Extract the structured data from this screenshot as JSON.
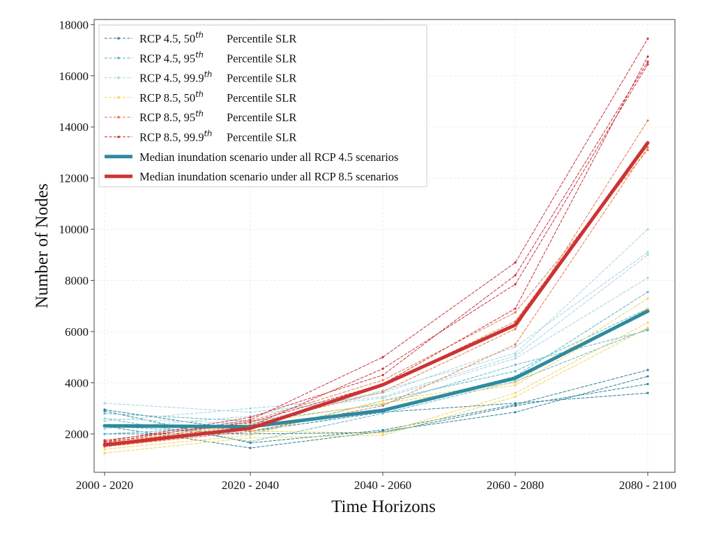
{
  "chart_data": {
    "type": "line",
    "title": "",
    "xlabel": "Time Horizons",
    "ylabel": "Number of Nodes",
    "categories": [
      "2000 - 2020",
      "2020 - 2040",
      "2040 - 2060",
      "2060 - 2080",
      "2080 - 2100"
    ],
    "ylim": [
      500,
      18200
    ],
    "yticks": [
      "2000",
      "4000",
      "6000",
      "8000",
      "10000",
      "12000",
      "14000",
      "16000",
      "18000"
    ],
    "grid": true,
    "legend_position": "top-left",
    "colors": {
      "rcp45_50": "#2a7f96",
      "rcp45_95": "#5ab6c9",
      "rcp45_999": "#a5d4dd",
      "rcp85_50": "#f2d45c",
      "rcp85_95": "#e8764a",
      "rcp85_999": "#c8303a",
      "median45": "#2e8a9e",
      "median85": "#cc3333"
    },
    "legend": [
      {
        "key": "rcp45_50",
        "prefix": "RCP 4.5,  50",
        "sup": "th",
        "suffix": "Percentile SLR",
        "style": "dashed"
      },
      {
        "key": "rcp45_95",
        "prefix": "RCP 4.5,  95",
        "sup": "th",
        "suffix": "Percentile SLR",
        "style": "dashed"
      },
      {
        "key": "rcp45_999",
        "prefix": "RCP 4.5,  99.9",
        "sup": "th",
        "suffix": "Percentile SLR",
        "style": "dashed"
      },
      {
        "key": "rcp85_50",
        "prefix": "RCP 8.5,  50",
        "sup": "th",
        "suffix": "Percentile SLR",
        "style": "dashed"
      },
      {
        "key": "rcp85_95",
        "prefix": "RCP 8.5,  95",
        "sup": "th",
        "suffix": "Percentile SLR",
        "style": "dashed"
      },
      {
        "key": "rcp85_999",
        "prefix": "RCP 8.5,  99.9",
        "sup": "th",
        "suffix": "Percentile SLR",
        "style": "dashed"
      },
      {
        "key": "median45",
        "text": "Median inundation scenario under all RCP 4.5 scenarios",
        "style": "solid"
      },
      {
        "key": "median85",
        "text": "Median inundation scenario under all RCP 8.5 scenarios",
        "style": "solid"
      }
    ],
    "series": [
      {
        "group": "rcp45_50",
        "values": [
          2900,
          1650,
          2150,
          3150,
          4500
        ]
      },
      {
        "group": "rcp45_50",
        "values": [
          2300,
          1450,
          2100,
          2850,
          4250
        ]
      },
      {
        "group": "rcp45_50",
        "values": [
          2000,
          2000,
          2050,
          3100,
          3950
        ]
      },
      {
        "group": "rcp45_50",
        "values": [
          2950,
          2100,
          2850,
          3200,
          3600
        ]
      },
      {
        "group": "rcp45_95",
        "values": [
          2600,
          1700,
          2800,
          4050,
          6100
        ]
      },
      {
        "group": "rcp45_95",
        "values": [
          2300,
          2000,
          3300,
          4450,
          6900
        ]
      },
      {
        "group": "rcp45_95",
        "values": [
          2000,
          2300,
          2950,
          4250,
          7550
        ]
      },
      {
        "group": "rcp45_95",
        "values": [
          2800,
          2500,
          3150,
          4700,
          6050
        ]
      },
      {
        "group": "rcp45_999",
        "values": [
          3200,
          2850,
          3400,
          4950,
          8100
        ]
      },
      {
        "group": "rcp45_999",
        "values": [
          2500,
          3000,
          3450,
          5050,
          9000
        ]
      },
      {
        "group": "rcp45_999",
        "values": [
          2200,
          2700,
          3600,
          5400,
          9100
        ]
      },
      {
        "group": "rcp45_999",
        "values": [
          2600,
          2400,
          3700,
          5150,
          10000
        ]
      },
      {
        "group": "rcp85_50",
        "values": [
          1250,
          1850,
          1950,
          3450,
          6150
        ]
      },
      {
        "group": "rcp85_50",
        "values": [
          1500,
          2100,
          2050,
          3600,
          6350
        ]
      },
      {
        "group": "rcp85_50",
        "values": [
          1400,
          1950,
          3300,
          4000,
          7300
        ]
      },
      {
        "group": "rcp85_50",
        "values": [
          1650,
          2400,
          3200,
          3900,
          6900
        ]
      },
      {
        "group": "rcp85_95",
        "values": [
          1500,
          2100,
          3100,
          5500,
          13200
        ]
      },
      {
        "group": "rcp85_95",
        "values": [
          1600,
          2350,
          3650,
          6100,
          14250
        ]
      },
      {
        "group": "rcp85_95",
        "values": [
          1700,
          2200,
          3900,
          6400,
          13400
        ]
      },
      {
        "group": "rcp85_95",
        "values": [
          1550,
          2500,
          4100,
          6750,
          13100
        ]
      },
      {
        "group": "rcp85_999",
        "values": [
          1550,
          2300,
          4550,
          7850,
          16450
        ]
      },
      {
        "group": "rcp85_999",
        "values": [
          1650,
          2550,
          5000,
          8700,
          17450
        ]
      },
      {
        "group": "rcp85_999",
        "values": [
          1700,
          2650,
          4300,
          8200,
          16550
        ]
      },
      {
        "group": "rcp85_999",
        "values": [
          1750,
          2450,
          3950,
          6900,
          16750
        ]
      },
      {
        "group": "median45",
        "values": [
          2320,
          2280,
          2920,
          4180,
          6800
        ]
      },
      {
        "group": "median85",
        "values": [
          1570,
          2220,
          3920,
          6260,
          13380
        ]
      }
    ]
  }
}
